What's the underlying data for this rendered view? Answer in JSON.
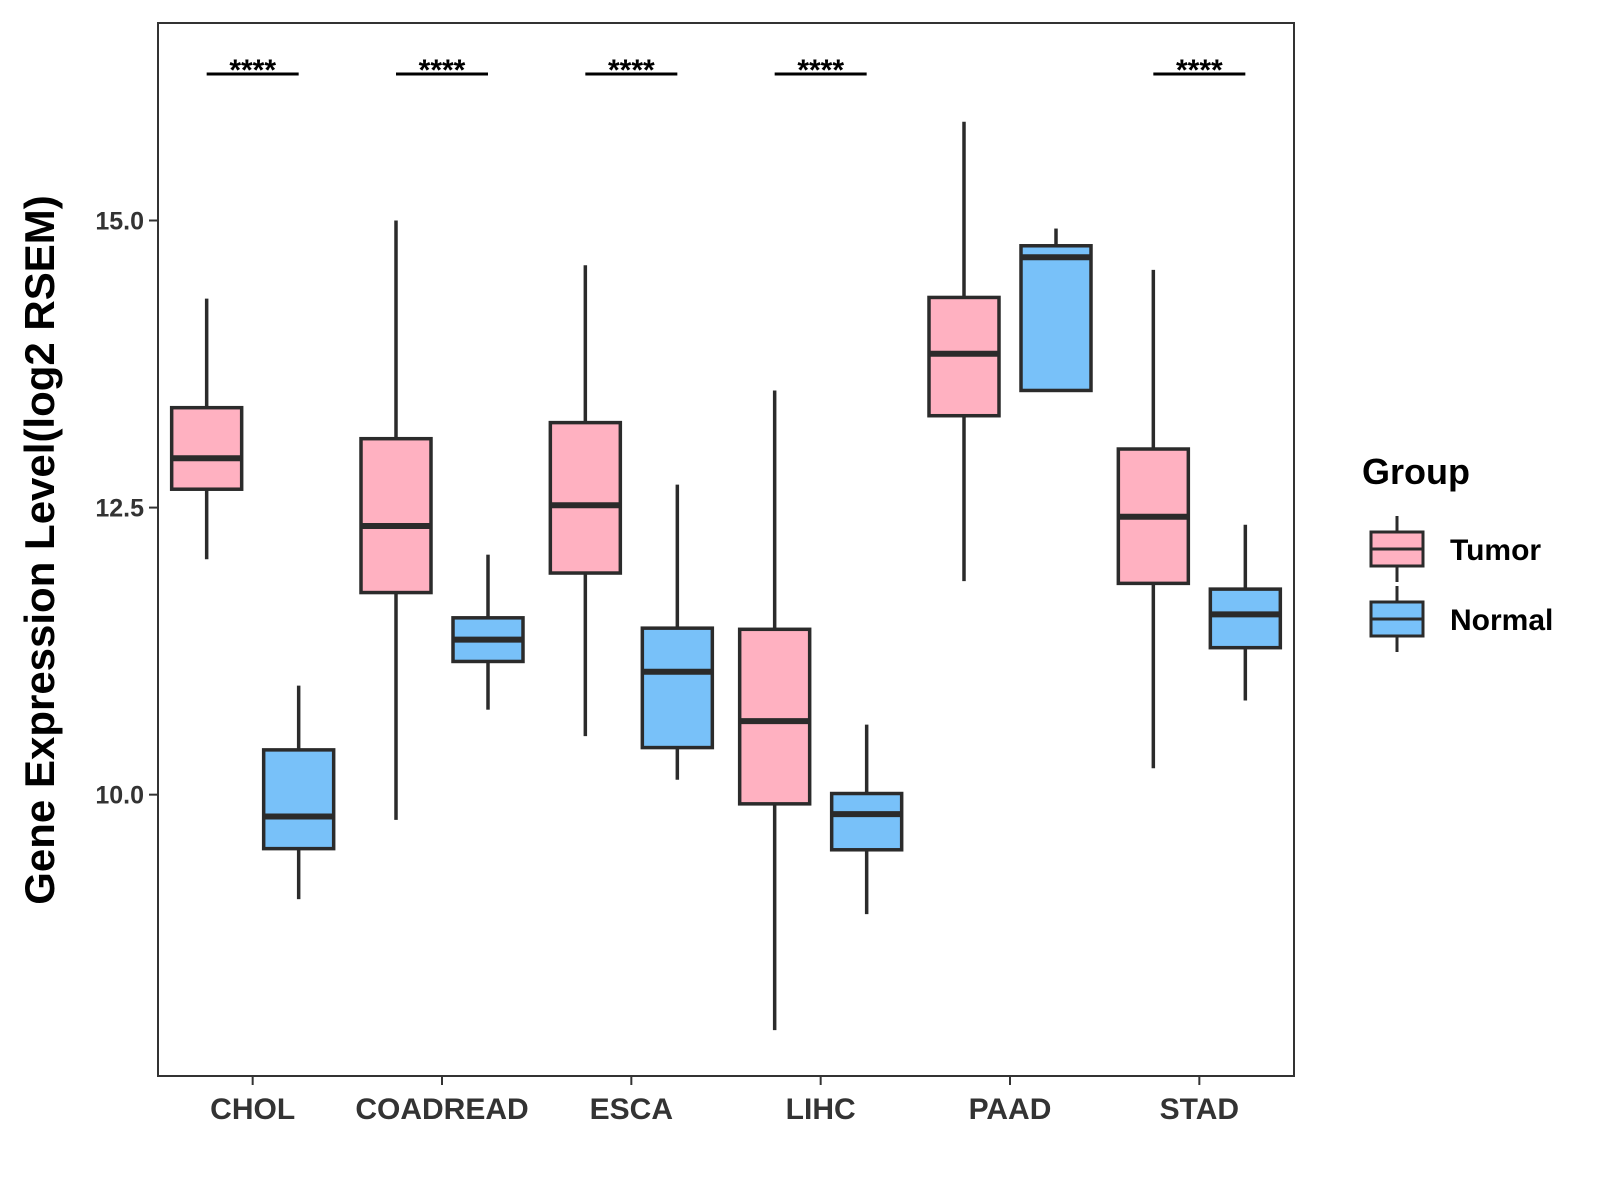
{
  "chart_data": {
    "type": "boxplot",
    "title": "",
    "xlabel": "",
    "ylabel": "Gene Expression Level(log2 RSEM)",
    "ylim": [
      7.55,
      16.72
    ],
    "yticks": [
      10.0,
      12.5,
      15.0
    ],
    "ytick_labels": [
      "10.0",
      "12.5",
      "15.0"
    ],
    "categories": [
      "CHOL",
      "COADREAD",
      "ESCA",
      "LIHC",
      "PAAD",
      "STAD"
    ],
    "significance": [
      "****",
      "****",
      "****",
      "****",
      "",
      "****"
    ],
    "legend": {
      "title": "Group",
      "position": "right"
    },
    "series": [
      {
        "name": "Tumor",
        "color": "#FFB1C1",
        "boxes": [
          {
            "whisker_low": 12.05,
            "q1": 12.66,
            "median": 12.93,
            "q3": 13.37,
            "whisker_high": 14.32
          },
          {
            "whisker_low": 9.78,
            "q1": 11.76,
            "median": 12.34,
            "q3": 13.1,
            "whisker_high": 15.0
          },
          {
            "whisker_low": 10.51,
            "q1": 11.93,
            "median": 12.52,
            "q3": 13.24,
            "whisker_high": 14.61
          },
          {
            "whisker_low": 7.95,
            "q1": 9.92,
            "median": 10.64,
            "q3": 11.44,
            "whisker_high": 13.52
          },
          {
            "whisker_low": 11.86,
            "q1": 13.3,
            "median": 13.84,
            "q3": 14.33,
            "whisker_high": 15.86
          },
          {
            "whisker_low": 10.23,
            "q1": 11.84,
            "median": 12.42,
            "q3": 13.01,
            "whisker_high": 14.57
          }
        ]
      },
      {
        "name": "Normal",
        "color": "#78C1F9",
        "boxes": [
          {
            "whisker_low": 9.09,
            "q1": 9.53,
            "median": 9.81,
            "q3": 10.39,
            "whisker_high": 10.95
          },
          {
            "whisker_low": 10.74,
            "q1": 11.16,
            "median": 11.35,
            "q3": 11.54,
            "whisker_high": 12.09
          },
          {
            "whisker_low": 10.13,
            "q1": 10.41,
            "median": 11.07,
            "q3": 11.45,
            "whisker_high": 12.7
          },
          {
            "whisker_low": 8.96,
            "q1": 9.52,
            "median": 9.83,
            "q3": 10.01,
            "whisker_high": 10.61
          },
          {
            "whisker_low": 13.52,
            "q1": 13.52,
            "median": 14.68,
            "q3": 14.78,
            "whisker_high": 14.93
          },
          {
            "whisker_low": 10.82,
            "q1": 11.28,
            "median": 11.57,
            "q3": 11.79,
            "whisker_high": 12.35
          }
        ]
      }
    ]
  }
}
